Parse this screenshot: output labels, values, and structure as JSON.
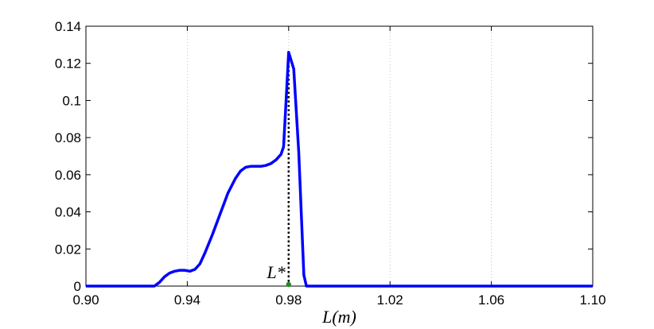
{
  "chart_data": {
    "type": "line",
    "title": "",
    "xlabel": "L(m)",
    "ylabel": "",
    "xlim": [
      0.9,
      1.1
    ],
    "ylim": [
      0,
      0.14
    ],
    "x_ticks": [
      0.9,
      0.94,
      0.98,
      1.02,
      1.06,
      1.1
    ],
    "x_tick_labels": [
      "0.90",
      "0.94",
      "0.98",
      "1.02",
      "1.06",
      "1.10"
    ],
    "y_ticks": [
      0,
      0.02,
      0.04,
      0.06,
      0.08,
      0.1,
      0.12,
      0.14
    ],
    "y_tick_labels": [
      "0",
      "0.02",
      "0.04",
      "0.06",
      "0.08",
      "0.1",
      "0.12",
      "0.14"
    ],
    "grid": "vertical dotted",
    "series": [
      {
        "color": "#0000ff",
        "x": [
          0.9,
          0.927,
          0.929,
          0.931,
          0.933,
          0.935,
          0.937,
          0.939,
          0.941,
          0.943,
          0.945,
          0.947,
          0.95,
          0.953,
          0.956,
          0.959,
          0.961,
          0.963,
          0.965,
          0.967,
          0.969,
          0.971,
          0.973,
          0.975,
          0.977,
          0.978,
          0.979,
          0.98,
          0.982,
          0.984,
          0.986,
          0.987,
          1.1
        ],
        "y": [
          0.0,
          0.0,
          0.002,
          0.005,
          0.007,
          0.008,
          0.0085,
          0.0085,
          0.008,
          0.009,
          0.012,
          0.018,
          0.028,
          0.039,
          0.05,
          0.058,
          0.062,
          0.064,
          0.0645,
          0.0645,
          0.0645,
          0.065,
          0.066,
          0.068,
          0.071,
          0.075,
          0.1,
          0.126,
          0.117,
          0.072,
          0.006,
          0.0,
          0.0
        ]
      }
    ],
    "annotations": [
      {
        "text": "L*",
        "x": 0.98,
        "y": 0.0,
        "marker_color": "#228b22",
        "line_to_y": 0.126,
        "line_style": "dotted",
        "line_color": "#000000"
      }
    ]
  }
}
